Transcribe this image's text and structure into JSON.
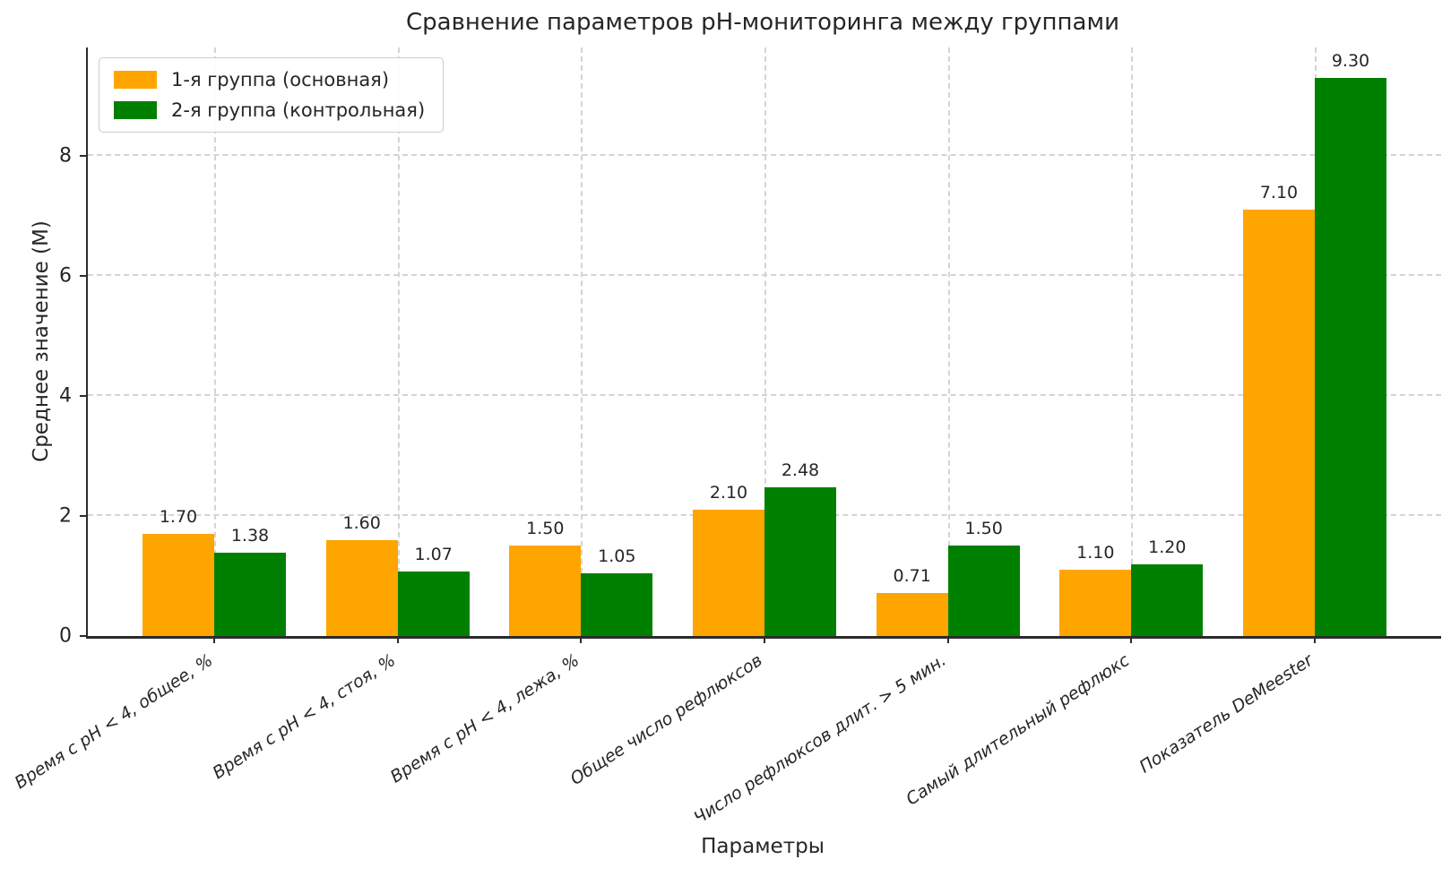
{
  "chart_data": {
    "type": "bar",
    "title": "Сравнение параметров pH-мониторинга между группами",
    "xlabel": "Параметры",
    "ylabel": "Среднее значение (М)",
    "categories": [
      "Время с pH < 4, общее, %",
      "Время с pH < 4, стоя, %",
      "Время с pH < 4, лежа, %",
      "Общее число рефлюксов",
      "Число рефлюксов длит. > 5 мин.",
      "Самый длительный рефлюкс",
      "Показатель DeMeester"
    ],
    "series": [
      {
        "name": "1-я группа (основная)",
        "color": "#FFA500",
        "values": [
          1.7,
          1.6,
          1.5,
          2.1,
          0.71,
          1.1,
          7.1
        ]
      },
      {
        "name": "2-я группа (контрольная)",
        "color": "#008000",
        "values": [
          1.38,
          1.07,
          1.05,
          2.48,
          1.5,
          1.2,
          9.3
        ]
      }
    ],
    "yticks": [
      0,
      2,
      4,
      6,
      8
    ],
    "ylim": [
      0,
      9.8
    ],
    "grid": true,
    "grid_style": "dashed",
    "legend_position": "upper left",
    "value_label_decimals": 2,
    "colors": {
      "spine": "#2b2b2b",
      "grid": "#d4d4d4",
      "text": "#262626",
      "background": "#ffffff"
    }
  }
}
